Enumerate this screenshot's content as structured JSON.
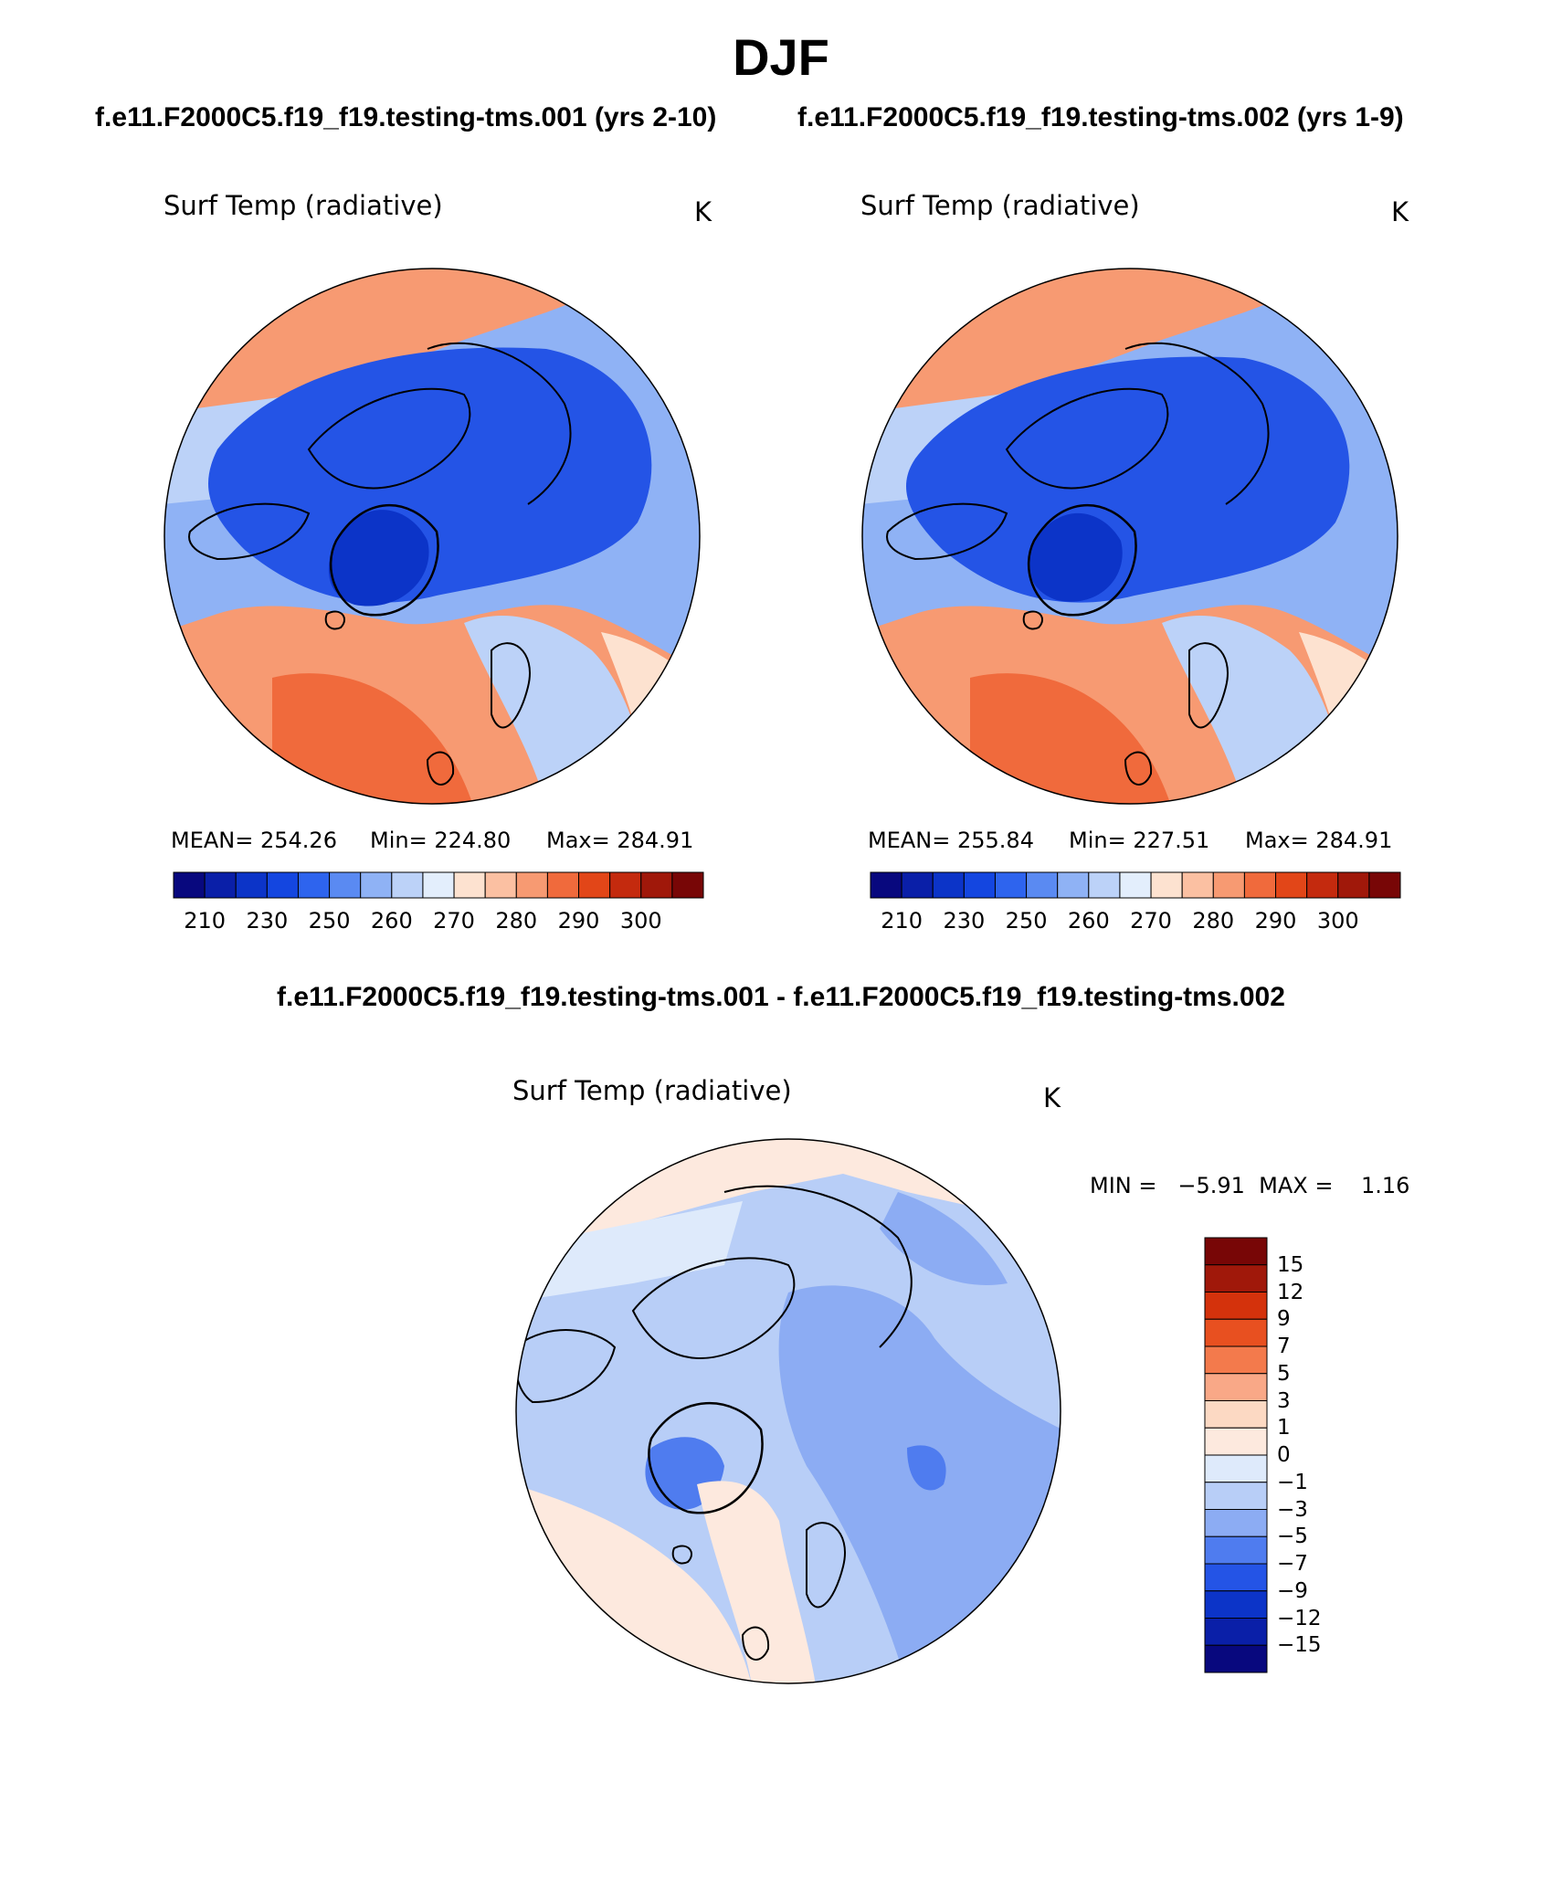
{
  "figure": {
    "title": "DJF",
    "case_a_title": "f.e11.F2000C5.f19_f19.testing-tms.001 (yrs 2-10)",
    "case_b_title": "f.e11.F2000C5.f19_f19.testing-tms.002 (yrs 1-9)",
    "diff_title": "f.e11.F2000C5.f19_f19.testing-tms.001 - f.e11.F2000C5.f19_f19.testing-tms.002"
  },
  "panels": [
    {
      "variable": "Surf Temp (radiative)",
      "units": "K",
      "mean_text": "MEAN= 254.26",
      "min_text": "Min= 224.80",
      "max_text": "Max= 284.91"
    },
    {
      "variable": "Surf Temp (radiative)",
      "units": "K",
      "mean_text": "MEAN= 255.84",
      "min_text": "Min= 227.51",
      "max_text": "Max= 284.91"
    }
  ],
  "diff_panel": {
    "variable": "Surf Temp (radiative)",
    "units": "K",
    "minmax_text": "MIN =   −5.91  MAX =    1.16"
  },
  "colorbar": {
    "ticks": [
      "210",
      "230",
      "250",
      "260",
      "270",
      "280",
      "290",
      "300"
    ],
    "colors": [
      "#08087e",
      "#0a1fa8",
      "#0c34c8",
      "#1446e0",
      "#2e64ee",
      "#5a8af2",
      "#8fb2f5",
      "#bcd2f8",
      "#e3eefc",
      "#fde2d0",
      "#fbc0a2",
      "#f79a72",
      "#f06a3c",
      "#e24618",
      "#c42a0e",
      "#a0180a",
      "#780606"
    ]
  },
  "diff_colorbar": {
    "labels": [
      "15",
      "12",
      "9",
      "7",
      "5",
      "3",
      "1",
      "0",
      "−1",
      "−3",
      "−5",
      "−7",
      "−9",
      "−12",
      "−15"
    ],
    "colors": [
      "#780606",
      "#a0180a",
      "#d4320c",
      "#e85020",
      "#f37a4c",
      "#f9a887",
      "#fcd9c3",
      "#fde9de",
      "#deeafb",
      "#b8cef7",
      "#8cacf3",
      "#4f7cef",
      "#2454e6",
      "#0c34c8",
      "#0a1fa8",
      "#08087e"
    ]
  },
  "maps": {
    "color_deep_blue": "#2454e6",
    "color_mid_blue": "#5a8af2",
    "color_light_blue": "#bcd2f8",
    "color_pale_peach": "#fde2d0",
    "color_peach": "#f9a887",
    "color_orange": "#f37a4c",
    "coast_color": "#000000"
  }
}
